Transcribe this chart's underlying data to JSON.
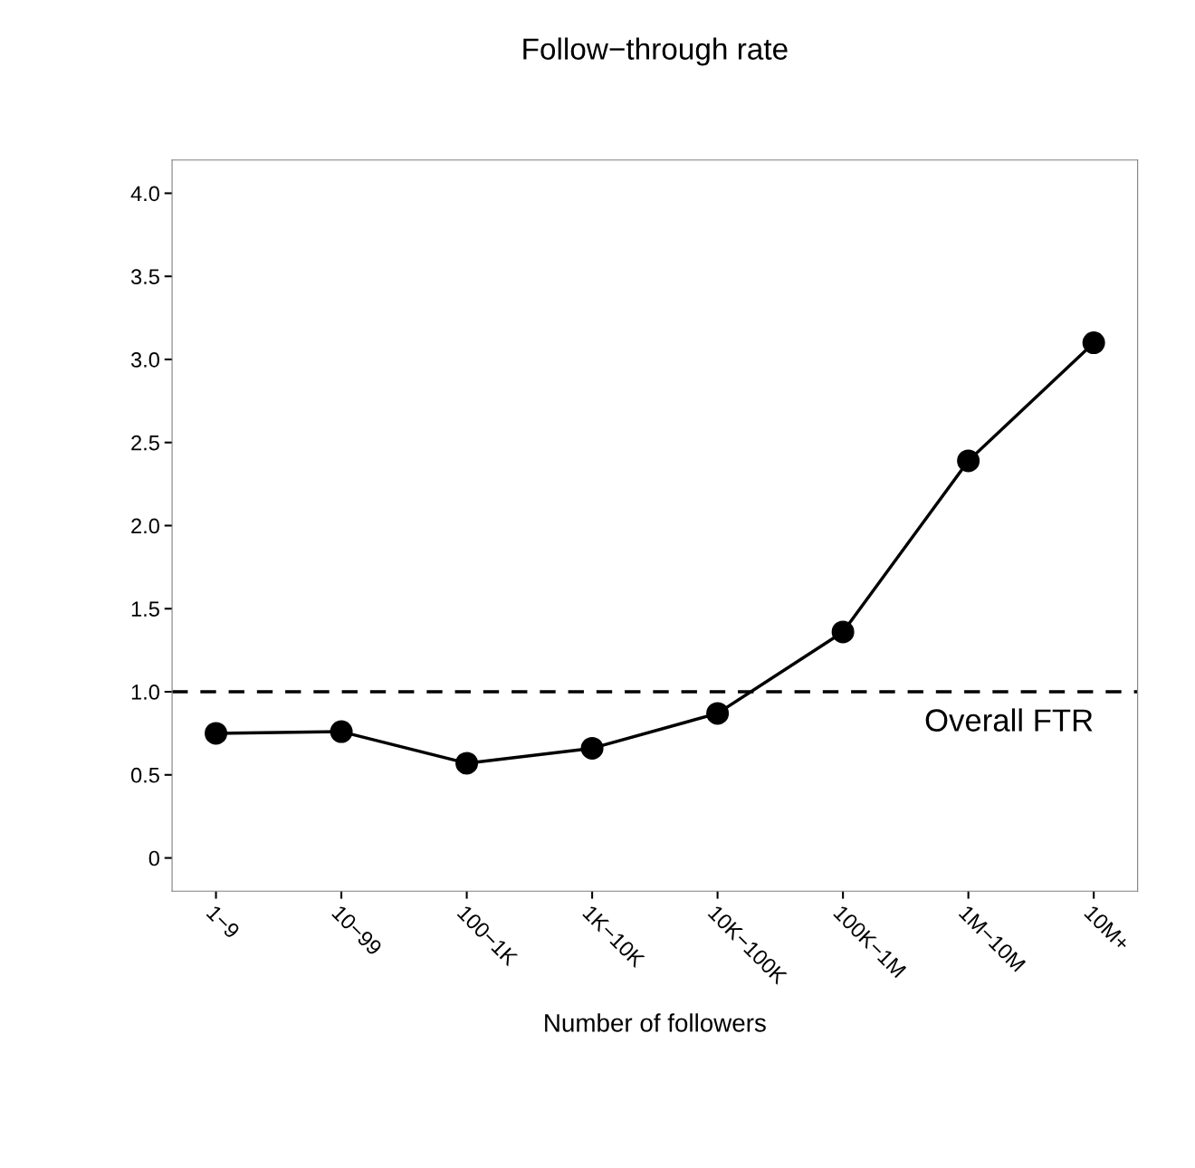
{
  "chart_data": {
    "type": "line",
    "title": "Follow−through rate",
    "xlabel": "Number of followers",
    "categories": [
      "1−9",
      "10−99",
      "100−1K",
      "1K−10K",
      "10K−100K",
      "100K−1M",
      "1M−10M",
      "10M+"
    ],
    "series": [
      {
        "color": "#000000",
        "values": [
          0.75,
          0.76,
          0.57,
          0.66,
          0.87,
          1.36,
          2.39,
          3.1
        ]
      }
    ],
    "marker": "circle",
    "line_style": "solid",
    "ylim": [
      -0.2,
      4.2
    ],
    "yticks": [
      0,
      0.5,
      {
        "value": 1,
        "label": "1.0"
      },
      1.5,
      {
        "value": 2,
        "label": "2.0"
      },
      2.5,
      {
        "value": 3,
        "label": "3.0"
      },
      3.5,
      {
        "value": 4,
        "label": "4.0"
      }
    ],
    "ref_lines": [
      {
        "axis": "y",
        "value": 1.0,
        "label": "Overall FTR",
        "color": "#000000",
        "line_style": "dashed"
      }
    ],
    "grid": false,
    "legend": false
  }
}
